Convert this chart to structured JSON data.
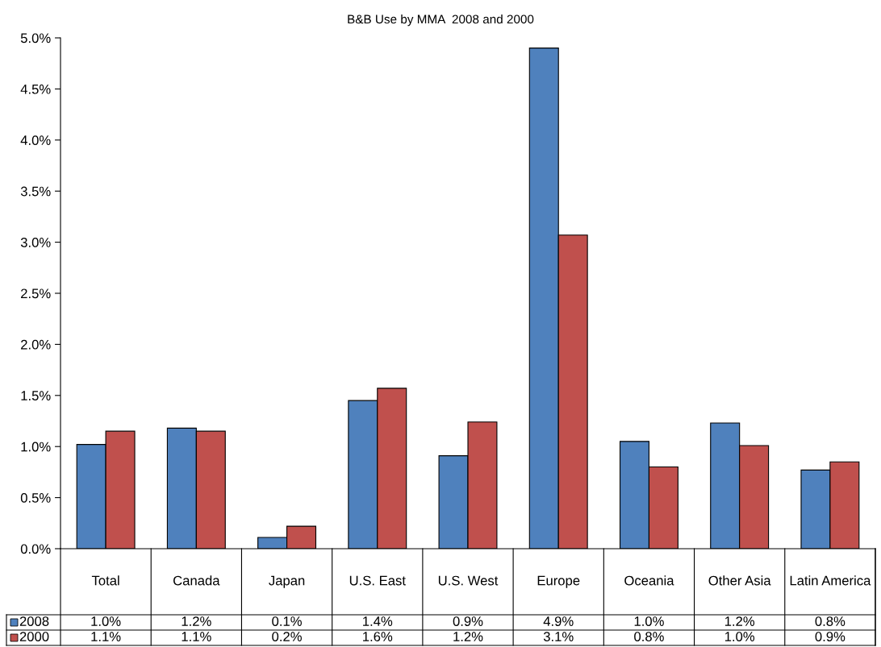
{
  "chart_data": {
    "type": "bar",
    "title": "B&B Use by MMA  2008 and 2000",
    "categories": [
      "Total",
      "Canada",
      "Japan",
      "U.S. East",
      "U.S. West",
      "Europe",
      "Oceania",
      "Other Asia",
      "Latin America"
    ],
    "series": [
      {
        "name": "2008",
        "color": "#4f81bd",
        "values": [
          1.02,
          1.18,
          0.11,
          1.45,
          0.91,
          4.9,
          1.05,
          1.23,
          0.77
        ],
        "value_labels": [
          "1.0%",
          "1.2%",
          "0.1%",
          "1.4%",
          "0.9%",
          "4.9%",
          "1.0%",
          "1.2%",
          "0.8%"
        ]
      },
      {
        "name": "2000",
        "color": "#c0504d",
        "values": [
          1.15,
          1.15,
          0.22,
          1.57,
          1.24,
          3.07,
          0.8,
          1.01,
          0.85
        ],
        "value_labels": [
          "1.1%",
          "1.1%",
          "0.2%",
          "1.6%",
          "1.2%",
          "3.1%",
          "0.8%",
          "1.0%",
          "0.9%"
        ]
      }
    ],
    "ylim": [
      0,
      5.0
    ],
    "yticks": [
      {
        "value": 0,
        "label": "0.0%"
      },
      {
        "value": 0.5,
        "label": "0.5%"
      },
      {
        "value": 1.0,
        "label": "1.0%"
      },
      {
        "value": 1.5,
        "label": "1.5%"
      },
      {
        "value": 2.0,
        "label": "2.0%"
      },
      {
        "value": 2.5,
        "label": "2.5%"
      },
      {
        "value": 3.0,
        "label": "3.0%"
      },
      {
        "value": 3.5,
        "label": "3.5%"
      },
      {
        "value": 4.0,
        "label": "4.0%"
      },
      {
        "value": 4.5,
        "label": "4.5%"
      },
      {
        "value": 5.0,
        "label": "5.0%"
      }
    ],
    "grid": false,
    "legend": "bottom left"
  }
}
